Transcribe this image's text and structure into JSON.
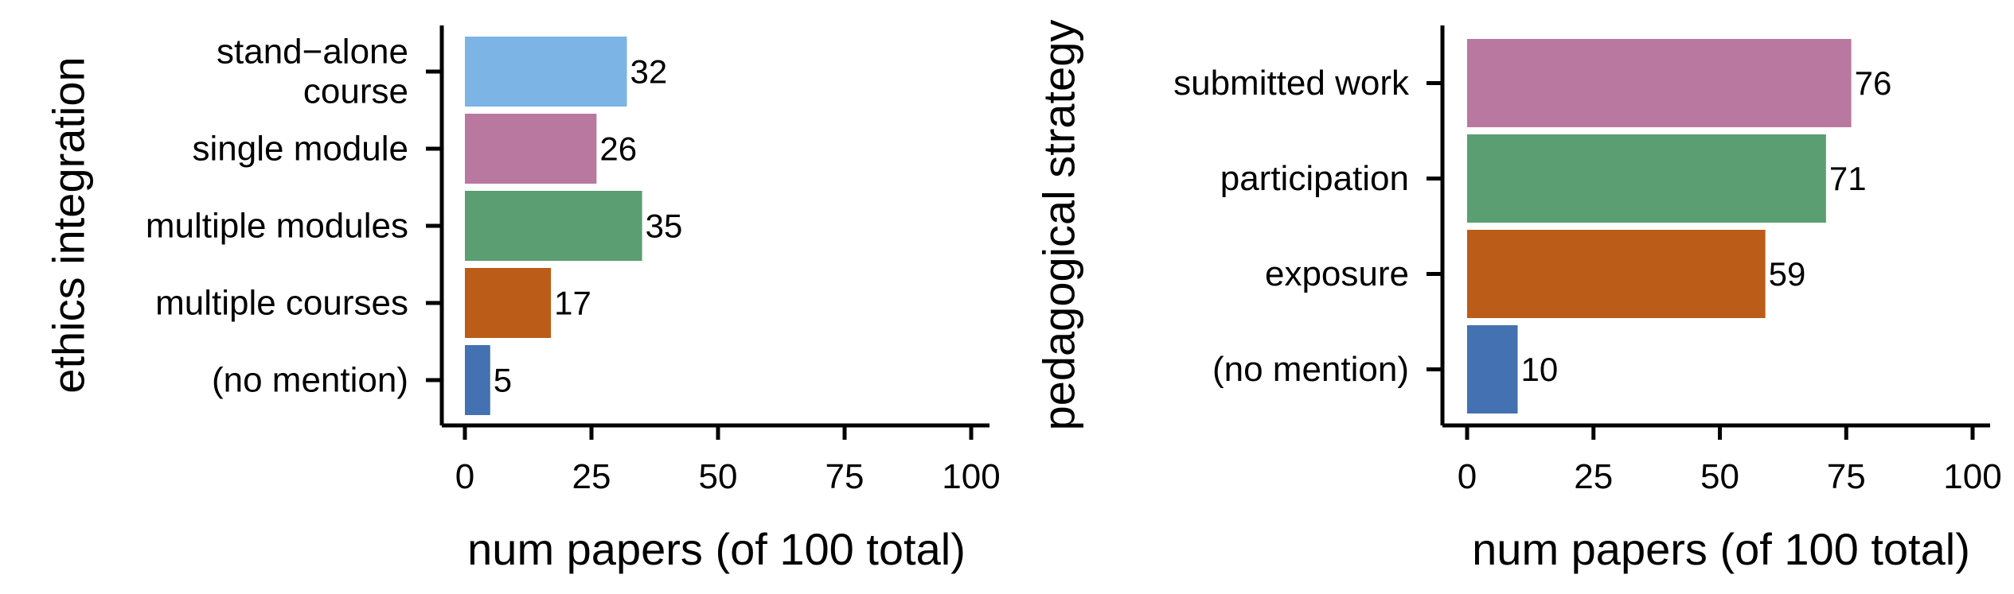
{
  "chart_data": [
    {
      "type": "bar",
      "orientation": "horizontal",
      "ylabel": "ethics integration",
      "xlabel": "num papers (of 100 total)",
      "xlim": [
        0,
        100
      ],
      "xticks": [
        0,
        25,
        50,
        75,
        100
      ],
      "categories": [
        [
          "stand−alone",
          "course"
        ],
        [
          "single module"
        ],
        [
          "multiple modules"
        ],
        [
          "multiple courses"
        ],
        [
          "(no mention)"
        ]
      ],
      "values": [
        32,
        26,
        35,
        17,
        5
      ],
      "colors": [
        "#7cb4e6",
        "#b8789f",
        "#5a9e72",
        "#bb5c18",
        "#4371b1"
      ]
    },
    {
      "type": "bar",
      "orientation": "horizontal",
      "ylabel": "pedagogical strategy",
      "xlabel": "num papers (of 100 total)",
      "xlim": [
        0,
        100
      ],
      "xticks": [
        0,
        25,
        50,
        75,
        100
      ],
      "categories": [
        [
          "submitted work"
        ],
        [
          "participation"
        ],
        [
          "exposure"
        ],
        [
          "(no mention)"
        ]
      ],
      "values": [
        76,
        71,
        59,
        10
      ],
      "colors": [
        "#b8789f",
        "#5a9e72",
        "#bb5c18",
        "#4371b1"
      ]
    }
  ]
}
